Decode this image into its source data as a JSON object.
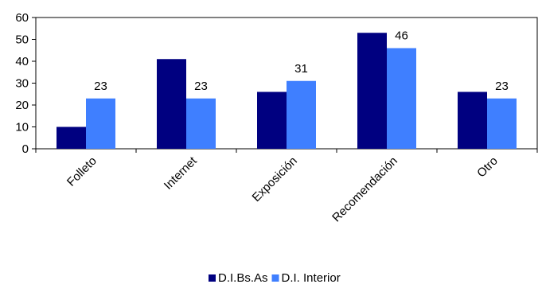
{
  "chart_data": {
    "type": "bar",
    "categories": [
      "Folleto",
      "Internet",
      "Exposición",
      "Recomendación",
      "Otro"
    ],
    "series": [
      {
        "name": "D.I.Bs.As",
        "values": [
          10,
          41,
          26,
          53,
          26
        ],
        "data_labels": [
          null,
          null,
          null,
          null,
          null
        ],
        "color": "#000080"
      },
      {
        "name": "D.I. Interior",
        "values": [
          23,
          23,
          31,
          46,
          23
        ],
        "data_labels": [
          "23",
          "23",
          "31",
          "46",
          "23"
        ],
        "color": "#3F7FFF"
      }
    ],
    "ylim": [
      0,
      60
    ],
    "yticks": [
      0,
      10,
      20,
      30,
      40,
      50,
      60
    ],
    "grid": false,
    "legend": "bottom-center",
    "title": "",
    "xlabel": "",
    "ylabel": ""
  }
}
